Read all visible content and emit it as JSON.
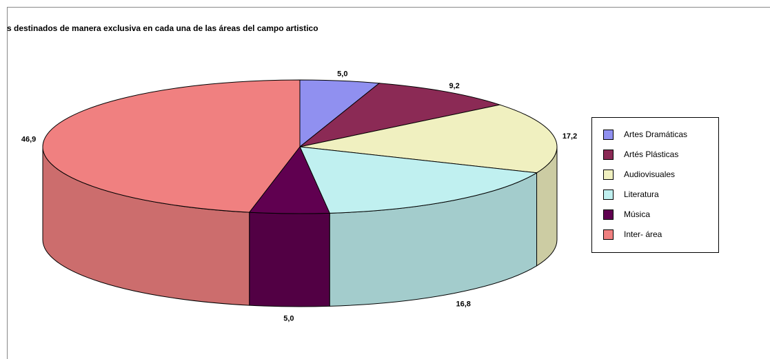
{
  "chart_data": {
    "type": "pie3d",
    "title": "s destinados de manera exclusiva en cada una de las áreas del campo artistico",
    "categories": [
      "Artes Dramáticas",
      "Artés Plásticas",
      "Audiovisuales",
      "Literatura",
      "Música",
      "Inter- área"
    ],
    "values": [
      5.0,
      9.2,
      17.2,
      16.8,
      5.0,
      46.9
    ],
    "value_labels": [
      "5,0",
      "9,2",
      "17,2",
      "16,8",
      "5,0",
      "46,9"
    ],
    "colors": [
      "#9090f0",
      "#8b2a55",
      "#f0f0c0",
      "#c0f0f0",
      "#600050",
      "#f08080"
    ],
    "legend": "right"
  }
}
